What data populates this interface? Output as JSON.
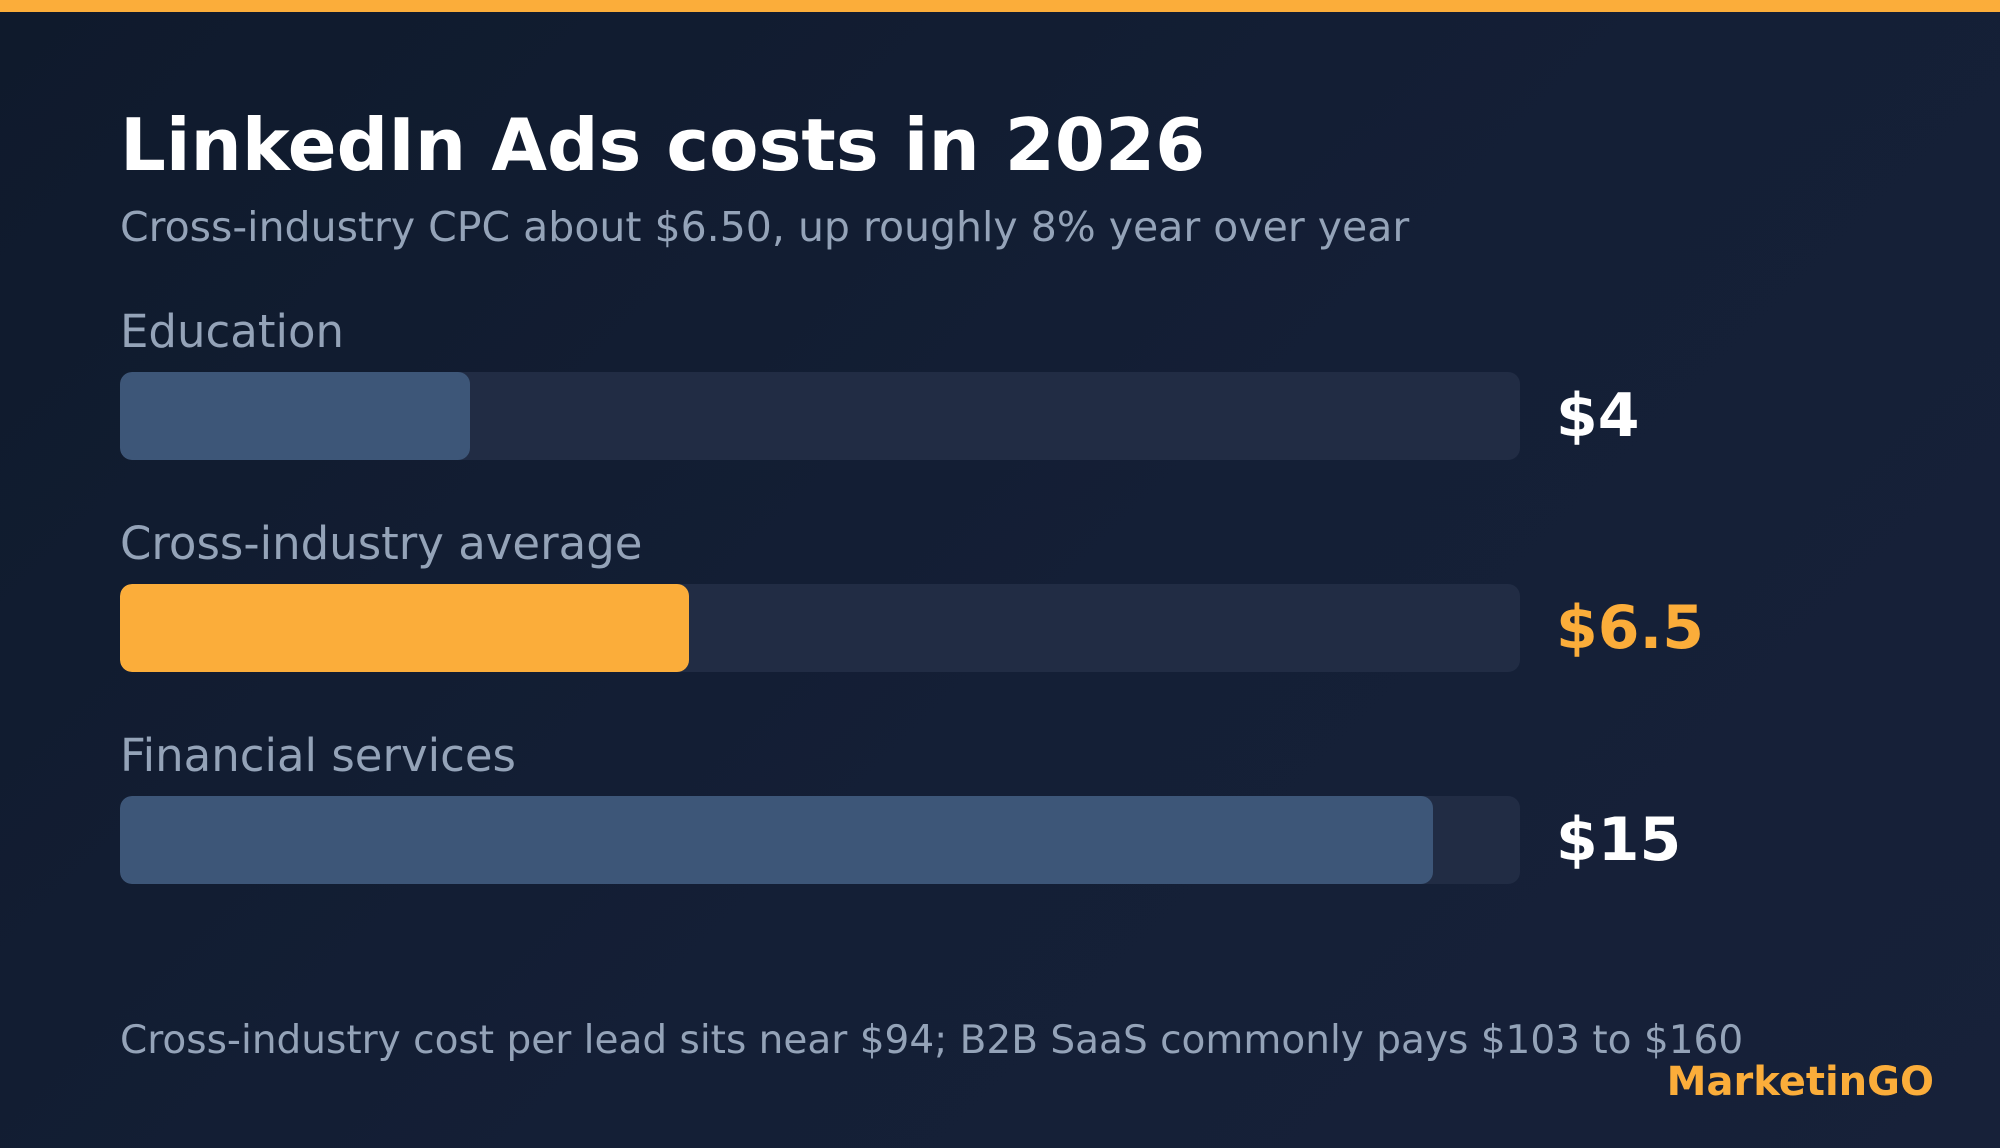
{
  "colors": {
    "accent": "#fbad3a",
    "bar_default": "#3d5678",
    "track": "#212c44",
    "value_default": "#ffffff"
  },
  "header": {
    "title": "LinkedIn Ads costs in 2026",
    "subtitle": "Cross-industry CPC about $6.50, up roughly 8% year over year"
  },
  "chart_data": {
    "type": "bar",
    "orientation": "horizontal",
    "categories": [
      "Education",
      "Cross-industry average",
      "Financial services"
    ],
    "values": [
      4,
      6.5,
      15
    ],
    "value_labels": [
      "$4",
      "$6.5",
      "$15"
    ],
    "highlight": "Cross-industry average",
    "xlim": [
      0,
      16
    ],
    "grid": false
  },
  "footer": {
    "note": "Cross-industry cost per lead sits near $94; B2B SaaS commonly pays $103 to $160",
    "brand": "MarketinGO"
  }
}
